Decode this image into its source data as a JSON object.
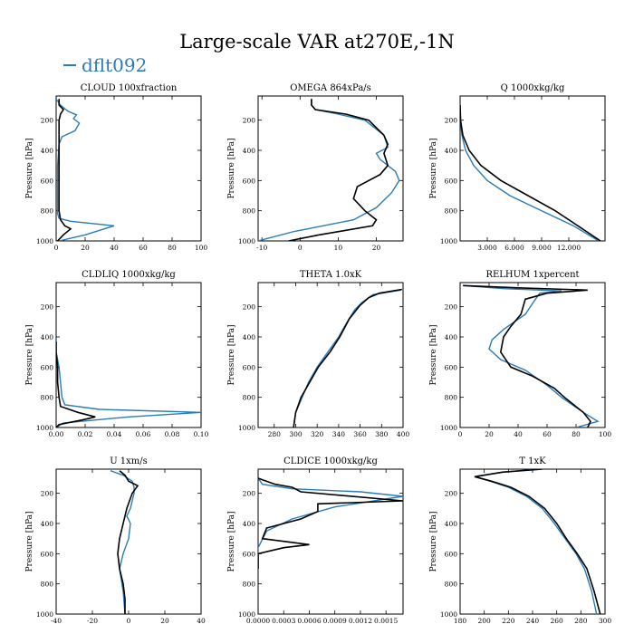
{
  "page": {
    "title": "Large-scale VAR at270E,-1N",
    "legend_label": "dflt092"
  },
  "colors": {
    "dflt092": "#2b7bb9",
    "reference": "#000000"
  },
  "chart_data": [
    {
      "type": "line",
      "title": "CLOUD  100xfraction",
      "ylabel": "Pressure [hPa]",
      "xlim": [
        0,
        100
      ],
      "xticks": [
        0,
        20,
        40,
        60,
        80,
        100
      ],
      "xtick_labels": [
        "0",
        "20",
        "40",
        "60",
        "80",
        "100"
      ],
      "ylim": [
        1000,
        40
      ],
      "yticks": [
        200,
        400,
        600,
        800,
        1000
      ],
      "series": [
        {
          "name": "dflt092",
          "color": "#2b7bb9",
          "x": [
            0,
            3,
            8,
            14,
            12,
            16,
            13,
            4,
            2,
            1,
            1,
            1,
            2,
            10,
            40,
            20,
            2
          ],
          "y": [
            60,
            100,
            140,
            165,
            190,
            220,
            270,
            310,
            360,
            500,
            700,
            820,
            850,
            870,
            900,
            960,
            1000
          ]
        },
        {
          "name": "",
          "color": "#000000",
          "x": [
            2,
            2,
            5,
            3,
            2,
            2,
            2,
            2,
            3,
            6,
            10,
            5,
            1
          ],
          "y": [
            60,
            100,
            130,
            160,
            200,
            400,
            600,
            800,
            860,
            900,
            920,
            960,
            1000
          ]
        }
      ]
    },
    {
      "type": "line",
      "title": "OMEGA  864xPa/s",
      "ylabel": "Pressure [hPa]",
      "xlim": [
        -11,
        27
      ],
      "xticks": [
        -10,
        0,
        10,
        20
      ],
      "xtick_labels": [
        "-10",
        "0",
        "10",
        "20"
      ],
      "ylim": [
        1000,
        40
      ],
      "yticks": [
        200,
        400,
        600,
        800,
        1000
      ],
      "series": [
        {
          "name": "dflt092",
          "color": "#2b7bb9",
          "x": [
            3,
            3,
            4,
            10,
            17,
            22,
            23,
            20,
            21,
            25,
            26,
            24,
            20,
            14,
            -2,
            -11
          ],
          "y": [
            60,
            100,
            130,
            160,
            200,
            300,
            380,
            420,
            460,
            540,
            600,
            680,
            780,
            860,
            940,
            1000
          ]
        },
        {
          "name": "",
          "color": "#000000",
          "x": [
            3,
            3,
            4,
            12,
            18,
            22,
            23,
            22,
            23,
            21,
            15,
            14,
            17,
            20,
            19,
            5,
            -3
          ],
          "y": [
            60,
            100,
            130,
            160,
            200,
            300,
            360,
            420,
            500,
            560,
            640,
            720,
            800,
            860,
            900,
            960,
            1000
          ]
        }
      ]
    },
    {
      "type": "line",
      "title": "Q  1000xkg/kg",
      "ylabel": "Pressure [hPa]",
      "xlim": [
        0,
        16
      ],
      "xticks": [
        3,
        6,
        9,
        12
      ],
      "xtick_labels": [
        "3.000",
        "6.000",
        "9.000",
        "12.000"
      ],
      "ylim": [
        1000,
        40
      ],
      "yticks": [
        200,
        400,
        600,
        800,
        1000
      ],
      "series": [
        {
          "name": "dflt092",
          "color": "#2b7bb9",
          "x": [
            0,
            0.05,
            0.2,
            0.6,
            1.5,
            3,
            5.5,
            9,
            12.5,
            15.3
          ],
          "y": [
            100,
            200,
            300,
            400,
            500,
            600,
            700,
            800,
            900,
            1000
          ]
        },
        {
          "name": "",
          "color": "#000000",
          "x": [
            0,
            0.05,
            0.3,
            1,
            2.3,
            4.5,
            7.5,
            10.5,
            13,
            15.5
          ],
          "y": [
            100,
            200,
            300,
            400,
            500,
            600,
            700,
            800,
            900,
            1000
          ]
        }
      ]
    },
    {
      "type": "line",
      "title": "CLDLIQ  1000xkg/kg",
      "ylabel": "Pressure [hPa]",
      "xlim": [
        0,
        0.1
      ],
      "xticks": [
        0,
        0.02,
        0.04,
        0.06,
        0.08,
        0.1
      ],
      "xtick_labels": [
        "0.00",
        "0.02",
        "0.04",
        "0.06",
        "0.08",
        "0.10"
      ],
      "ylim": [
        1000,
        40
      ],
      "yticks": [
        200,
        400,
        600,
        800,
        1000
      ],
      "series": [
        {
          "name": "dflt092",
          "color": "#2b7bb9",
          "x": [
            0,
            0,
            0.002,
            0.003,
            0.004,
            0.006,
            0.03,
            0.1,
            0.05,
            0.005,
            0
          ],
          "y": [
            420,
            500,
            600,
            700,
            800,
            850,
            880,
            900,
            930,
            970,
            1000
          ]
        },
        {
          "name": "",
          "color": "#000000",
          "x": [
            0,
            0,
            0.001,
            0.001,
            0.002,
            0.003,
            0.015,
            0.027,
            0.018,
            0.002,
            0
          ],
          "y": [
            430,
            500,
            600,
            700,
            800,
            860,
            900,
            930,
            950,
            980,
            1000
          ]
        }
      ]
    },
    {
      "type": "line",
      "title": "THETA  1.0xK",
      "ylabel": "Pressure [hPa]",
      "xlim": [
        265,
        400
      ],
      "xticks": [
        280,
        300,
        320,
        340,
        360,
        380,
        400
      ],
      "xtick_labels": [
        "280",
        "300",
        "320",
        "340",
        "360",
        "380",
        "400"
      ],
      "ylim": [
        1000,
        40
      ],
      "yticks": [
        200,
        400,
        600,
        800,
        1000
      ],
      "series": [
        {
          "name": "dflt092",
          "color": "#2b7bb9",
          "x": [
            398,
            372,
            362,
            355,
            348,
            340,
            330,
            320,
            312,
            306,
            300,
            298
          ],
          "y": [
            90,
            120,
            170,
            220,
            300,
            400,
            500,
            600,
            700,
            800,
            900,
            1000
          ]
        },
        {
          "name": "",
          "color": "#000000",
          "x": [
            399,
            378,
            368,
            360,
            350,
            341,
            332,
            321,
            313,
            305,
            300,
            298
          ],
          "y": [
            85,
            110,
            140,
            190,
            280,
            400,
            500,
            600,
            700,
            800,
            900,
            1000
          ]
        }
      ]
    },
    {
      "type": "line",
      "title": "RELHUM  1xpercent",
      "ylabel": "Pressure [hPa]",
      "xlim": [
        0,
        100
      ],
      "xticks": [
        0,
        20,
        40,
        60,
        80,
        100
      ],
      "xtick_labels": [
        "0",
        "20",
        "40",
        "60",
        "80",
        "100"
      ],
      "ylim": [
        1000,
        40
      ],
      "yticks": [
        200,
        400,
        600,
        800,
        1000
      ],
      "series": [
        {
          "name": "dflt092",
          "color": "#2b7bb9",
          "x": [
            2,
            30,
            70,
            55,
            52,
            45,
            30,
            22,
            20,
            28,
            45,
            60,
            70,
            85,
            95,
            80
          ],
          "y": [
            60,
            80,
            95,
            110,
            150,
            250,
            350,
            420,
            480,
            550,
            620,
            720,
            800,
            900,
            960,
            1000
          ]
        },
        {
          "name": "",
          "color": "#000000",
          "x": [
            2,
            40,
            88,
            60,
            45,
            42,
            35,
            30,
            28,
            35,
            50,
            65,
            72,
            85,
            90,
            88
          ],
          "y": [
            60,
            75,
            90,
            110,
            150,
            250,
            330,
            400,
            500,
            600,
            660,
            740,
            800,
            900,
            960,
            1000
          ]
        }
      ]
    },
    {
      "type": "line",
      "title": "U  1xm/s",
      "ylabel": "Pressure [hPa]",
      "xlim": [
        -40,
        40
      ],
      "xticks": [
        -40,
        -20,
        0,
        20,
        40
      ],
      "xtick_labels": [
        "-40",
        "-20",
        "0",
        "20",
        "40"
      ],
      "ylim": [
        1000,
        40
      ],
      "yticks": [
        200,
        400,
        600,
        800,
        1000
      ],
      "series": [
        {
          "name": "dflt092",
          "color": "#2b7bb9",
          "x": [
            -10,
            -3,
            2,
            3,
            3,
            1,
            -1,
            1,
            0,
            -3,
            -5,
            -3,
            -2
          ],
          "y": [
            50,
            80,
            120,
            160,
            200,
            300,
            350,
            400,
            500,
            600,
            700,
            850,
            1000
          ]
        },
        {
          "name": "",
          "color": "#000000",
          "x": [
            -5,
            -2,
            0,
            5,
            2,
            -1,
            -3,
            -5,
            -6,
            -5,
            -3,
            -2,
            -2
          ],
          "y": [
            50,
            80,
            120,
            150,
            200,
            300,
            400,
            500,
            600,
            700,
            800,
            900,
            1000
          ]
        }
      ]
    },
    {
      "type": "line",
      "title": "CLDICE  1000xkg/kg",
      "ylabel": "Pressure [hPa]",
      "xlim": [
        0,
        0.0017
      ],
      "xticks": [
        0,
        0.0003,
        0.0006,
        0.0009,
        0.0012,
        0.0015
      ],
      "xtick_labels": [
        "0.0000",
        "0.0003",
        "0.0006",
        "0.0009",
        "0.0012",
        "0.0015"
      ],
      "ylim": [
        1000,
        40
      ],
      "yticks": [
        200,
        400,
        600,
        800,
        1000
      ],
      "series": [
        {
          "name": "dflt092",
          "color": "#2b7bb9",
          "x": [
            0,
            5e-05,
            0.0004,
            0.0012,
            0.0017,
            0.0009,
            0.0004,
            0.0001,
            0,
            0
          ],
          "y": [
            100,
            140,
            170,
            190,
            220,
            290,
            370,
            450,
            560,
            700
          ]
        },
        {
          "name": "",
          "color": "#000000",
          "x": [
            0,
            0.0002,
            0.0004,
            0.0005,
            0.0017,
            0.0007,
            0.0007,
            0.0005,
            0.0001,
            5e-05,
            0.0006,
            0.0003,
            0,
            0
          ],
          "y": [
            100,
            140,
            160,
            190,
            250,
            270,
            320,
            370,
            430,
            500,
            540,
            560,
            600,
            700
          ]
        }
      ]
    },
    {
      "type": "line",
      "title": "T  1xK",
      "ylabel": "Pressure [hPa]",
      "xlim": [
        180,
        300
      ],
      "xticks": [
        180,
        200,
        220,
        240,
        260,
        280,
        300
      ],
      "xtick_labels": [
        "180",
        "200",
        "220",
        "240",
        "260",
        "280",
        "300"
      ],
      "ylim": [
        1000,
        40
      ],
      "yticks": [
        200,
        400,
        600,
        800,
        1000
      ],
      "series": [
        {
          "name": "dflt092",
          "color": "#2b7bb9",
          "x": [
            245,
            215,
            193,
            205,
            220,
            235,
            248,
            258,
            267,
            276,
            283,
            289,
            293
          ],
          "y": [
            40,
            60,
            90,
            120,
            160,
            220,
            300,
            400,
            500,
            600,
            700,
            850,
            1000
          ]
        },
        {
          "name": "",
          "color": "#000000",
          "x": [
            248,
            215,
            192,
            206,
            222,
            237,
            250,
            260,
            268,
            277,
            285,
            291,
            296
          ],
          "y": [
            40,
            60,
            90,
            120,
            160,
            220,
            300,
            400,
            500,
            600,
            700,
            850,
            1000
          ]
        }
      ]
    }
  ]
}
